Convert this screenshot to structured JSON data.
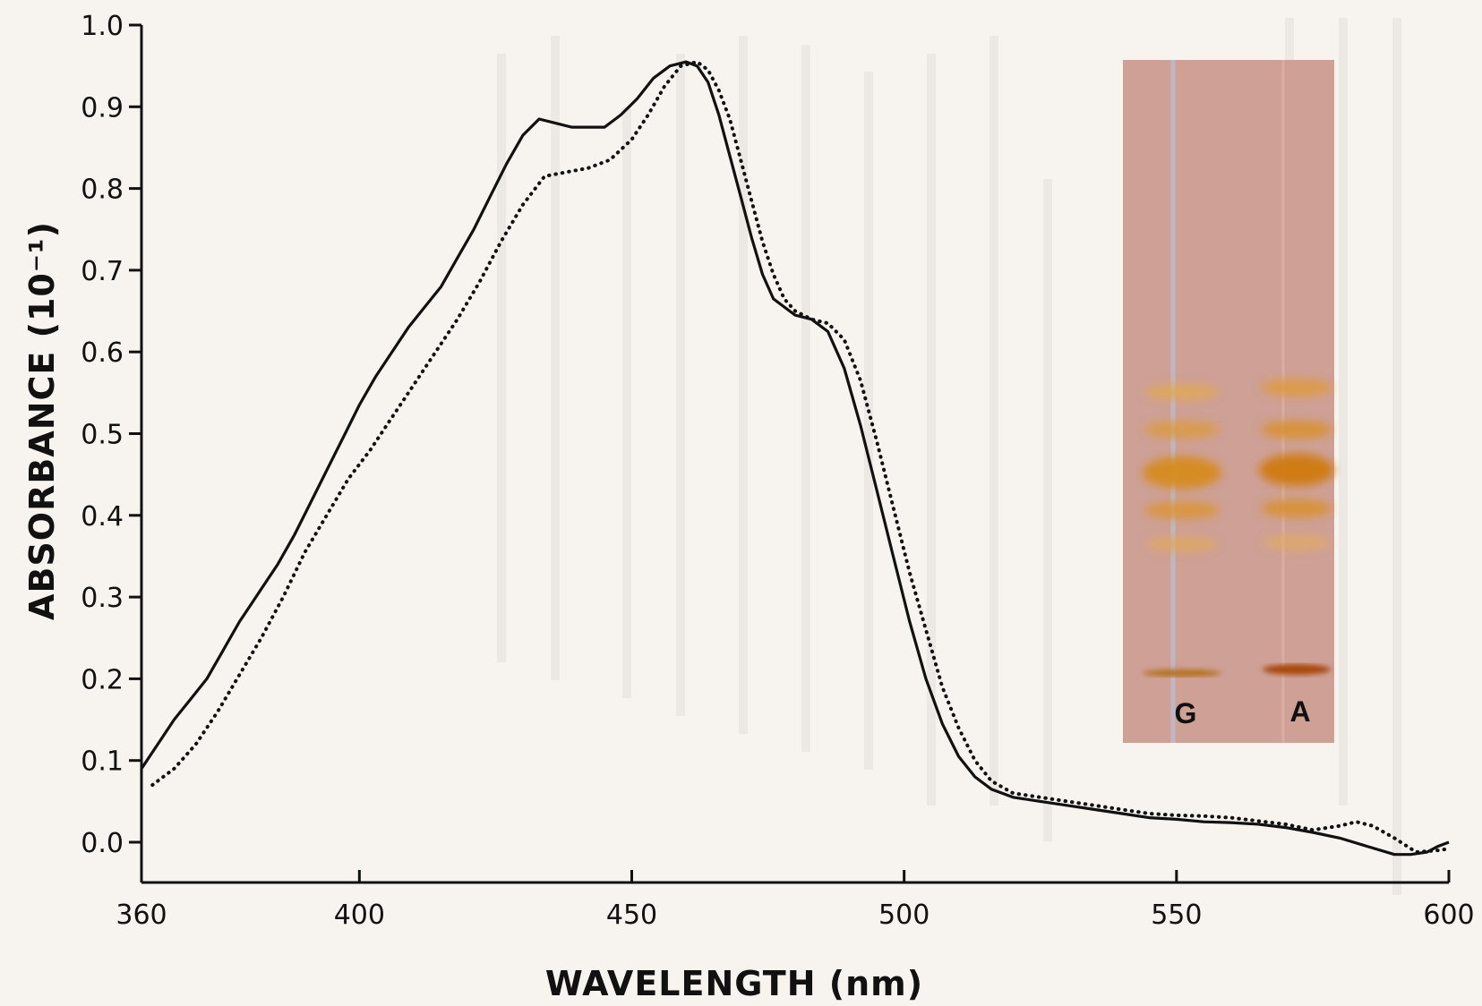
{
  "chart_data": {
    "type": "line",
    "title": "",
    "xlabel": "WAVELENGTH (nm)",
    "ylabel": "ABSORBANCE (10⁻¹)",
    "xlim": [
      360,
      600
    ],
    "ylim": [
      0.0,
      1.0
    ],
    "x_ticks": [
      "360",
      "400",
      "450",
      "500",
      "550",
      "600"
    ],
    "y_ticks": [
      "0.0",
      "0.1",
      "0.2",
      "0.3",
      "0.4",
      "0.5",
      "0.6",
      "0.7",
      "0.8",
      "0.9",
      "1.0"
    ],
    "grid": false,
    "legend": false,
    "series": [
      {
        "style": "solid",
        "x": [
          360,
          363,
          366,
          369,
          372,
          375,
          378,
          380,
          382,
          385,
          388,
          391,
          394,
          397,
          400,
          403,
          406,
          409,
          412,
          415,
          418,
          421,
          424,
          427,
          430,
          433,
          436,
          439,
          442,
          445,
          448,
          451,
          454,
          457,
          460,
          462,
          464,
          466,
          468,
          470,
          472,
          474,
          476,
          478,
          480,
          483,
          486,
          489,
          492,
          495,
          498,
          501,
          504,
          507,
          510,
          513,
          516,
          520,
          525,
          530,
          535,
          540,
          545,
          550,
          555,
          560,
          565,
          570,
          575,
          580,
          585,
          590,
          593,
          596,
          598,
          600
        ],
        "y": [
          0.09,
          0.12,
          0.15,
          0.175,
          0.2,
          0.235,
          0.27,
          0.29,
          0.31,
          0.34,
          0.375,
          0.415,
          0.455,
          0.495,
          0.535,
          0.57,
          0.6,
          0.63,
          0.655,
          0.68,
          0.715,
          0.75,
          0.79,
          0.83,
          0.865,
          0.885,
          0.88,
          0.875,
          0.875,
          0.875,
          0.89,
          0.91,
          0.935,
          0.95,
          0.955,
          0.95,
          0.93,
          0.89,
          0.84,
          0.79,
          0.74,
          0.695,
          0.665,
          0.655,
          0.645,
          0.64,
          0.625,
          0.58,
          0.51,
          0.43,
          0.35,
          0.27,
          0.2,
          0.145,
          0.105,
          0.08,
          0.065,
          0.055,
          0.05,
          0.045,
          0.04,
          0.035,
          0.03,
          0.028,
          0.025,
          0.024,
          0.022,
          0.018,
          0.012,
          0.005,
          -0.005,
          -0.015,
          -0.015,
          -0.012,
          -0.005,
          0.0
        ]
      },
      {
        "style": "dotted",
        "x": [
          362,
          366,
          370,
          374,
          378,
          382,
          386,
          390,
          394,
          398,
          402,
          406,
          410,
          414,
          418,
          422,
          426,
          430,
          434,
          438,
          442,
          446,
          450,
          453,
          456,
          459,
          462,
          464,
          466,
          468,
          470,
          472,
          474,
          476,
          478,
          480,
          483,
          486,
          489,
          492,
          495,
          498,
          501,
          504,
          507,
          510,
          513,
          516,
          520,
          525,
          530,
          535,
          540,
          545,
          550,
          555,
          560,
          565,
          570,
          575,
          580,
          583,
          586,
          590,
          594,
          598,
          600
        ],
        "y": [
          0.07,
          0.09,
          0.12,
          0.16,
          0.205,
          0.25,
          0.3,
          0.355,
          0.4,
          0.445,
          0.48,
          0.52,
          0.56,
          0.6,
          0.64,
          0.685,
          0.735,
          0.78,
          0.815,
          0.82,
          0.825,
          0.835,
          0.86,
          0.89,
          0.925,
          0.95,
          0.955,
          0.945,
          0.92,
          0.885,
          0.835,
          0.785,
          0.735,
          0.695,
          0.665,
          0.65,
          0.64,
          0.635,
          0.615,
          0.565,
          0.49,
          0.41,
          0.33,
          0.26,
          0.19,
          0.14,
          0.1,
          0.075,
          0.06,
          0.055,
          0.05,
          0.045,
          0.04,
          0.035,
          0.033,
          0.032,
          0.03,
          0.026,
          0.022,
          0.015,
          0.02,
          0.025,
          0.02,
          0.005,
          -0.012,
          -0.01,
          -0.008
        ]
      }
    ]
  },
  "inset": {
    "lanes": [
      "G",
      "A"
    ]
  }
}
